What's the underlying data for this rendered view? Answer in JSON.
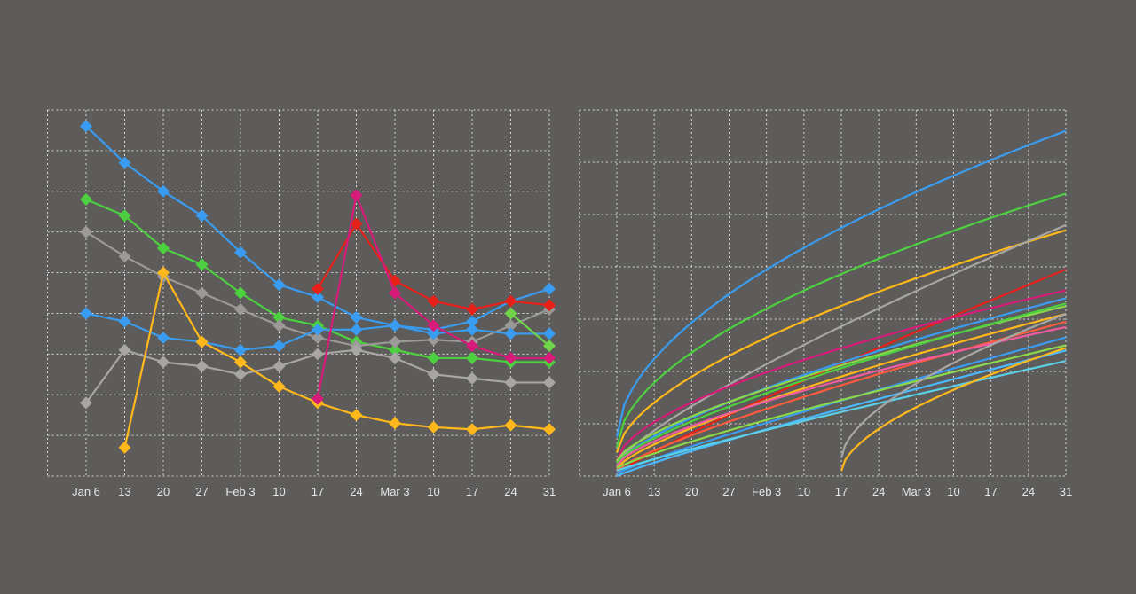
{
  "chart_data": [
    {
      "type": "line",
      "markers": "diamond",
      "grid": true,
      "x_ticks": [
        "Jan 6",
        "13",
        "20",
        "27",
        "Feb 3",
        "10",
        "17",
        "24",
        "Mar 3",
        "10",
        "17",
        "24",
        "31"
      ],
      "ylim": [
        0,
        9
      ],
      "series": [
        {
          "color": "#3a9cf0",
          "values": [
            8.6,
            7.7,
            7.0,
            6.4,
            5.5,
            4.7,
            4.4,
            3.9,
            3.7,
            3.6,
            3.8,
            4.3,
            4.6
          ]
        },
        {
          "color": "#4dd03f",
          "values": [
            6.8,
            6.4,
            5.6,
            5.2,
            4.5,
            3.9,
            3.7,
            3.3,
            3.1,
            2.9,
            2.9,
            2.8,
            2.8
          ]
        },
        {
          "color": "#9b9a98",
          "values": [
            6.0,
            5.4,
            4.9,
            4.5,
            4.1,
            3.7,
            3.4,
            3.2,
            3.3,
            3.35,
            3.3,
            3.7,
            4.1
          ]
        },
        {
          "color": "#3a9cf0",
          "values": [
            4.0,
            3.8,
            3.4,
            3.3,
            3.1,
            3.2,
            3.6,
            3.6,
            3.7,
            3.5,
            3.6,
            3.5,
            3.5
          ]
        },
        {
          "color": "#a7a6a4",
          "values": [
            1.8,
            3.1,
            2.8,
            2.7,
            2.5,
            2.7,
            3.0,
            3.1,
            2.9,
            2.5,
            2.4,
            2.3,
            2.3
          ]
        },
        {
          "color": "#ffb81c",
          "values": [
            null,
            0.7,
            5.0,
            3.3,
            2.8,
            2.2,
            1.8,
            1.5,
            1.3,
            1.2,
            1.15,
            1.25,
            1.15
          ]
        },
        {
          "color": "#e8201a",
          "values": [
            null,
            null,
            null,
            null,
            null,
            null,
            4.6,
            6.2,
            4.8,
            4.3,
            4.1,
            4.3,
            4.2
          ]
        },
        {
          "color": "#d81b7a",
          "values": [
            null,
            null,
            null,
            null,
            null,
            null,
            1.9,
            6.9,
            4.5,
            3.7,
            3.2,
            2.9,
            2.9
          ]
        },
        {
          "color": "#6fd44a",
          "values": [
            null,
            null,
            null,
            null,
            null,
            null,
            null,
            null,
            null,
            null,
            null,
            4.0,
            3.2
          ]
        }
      ]
    },
    {
      "type": "line",
      "grid": true,
      "x_ticks": [
        "Jan 6",
        "13",
        "20",
        "27",
        "Feb 3",
        "10",
        "17",
        "24",
        "Mar 3",
        "10",
        "17",
        "24",
        "31"
      ],
      "ylim": [
        0,
        7
      ],
      "series": [
        {
          "color": "#3a9cf0",
          "start": 0,
          "start_value": 0.75,
          "end_value": 6.6,
          "curve": 0.55
        },
        {
          "color": "#4dd03f",
          "start": 0,
          "start_value": 0.55,
          "end_value": 5.4,
          "curve": 0.55
        },
        {
          "color": "#ffb81c",
          "start": 0,
          "start_value": 0.45,
          "end_value": 4.7,
          "curve": 0.6
        },
        {
          "color": "#a7a6a4",
          "start": 0,
          "start_value": 0.25,
          "end_value": 4.8,
          "curve": 0.8
        },
        {
          "color": "#e8201a",
          "start": 0,
          "start_value": 0.05,
          "end_value": 3.95,
          "curve": 0.9
        },
        {
          "color": "#d81b7a",
          "start": 0,
          "start_value": 0.3,
          "end_value": 3.55,
          "curve": 0.6
        },
        {
          "color": "#3a9cf0",
          "start": 0,
          "start_value": 0.2,
          "end_value": 3.4,
          "curve": 0.7
        },
        {
          "color": "#8bd84a",
          "start": 0,
          "start_value": 0.3,
          "end_value": 3.25,
          "curve": 0.7
        },
        {
          "color": "#ffb81c",
          "start": 0,
          "start_value": 0.15,
          "end_value": 3.1,
          "curve": 0.75
        },
        {
          "color": "#4dd03f",
          "start": 0,
          "start_value": 0.25,
          "end_value": 3.3,
          "curve": 0.75
        },
        {
          "color": "#ff5a3c",
          "start": 0,
          "start_value": 0.1,
          "end_value": 2.95,
          "curve": 0.8
        },
        {
          "color": "#f05aa0",
          "start": 0,
          "start_value": 0.2,
          "end_value": 2.85,
          "curve": 0.7
        },
        {
          "color": "#3a9cf0",
          "start": 0,
          "start_value": 0.05,
          "end_value": 2.65,
          "curve": 0.9
        },
        {
          "color": "#8bd84a",
          "start": 0,
          "start_value": 0.15,
          "end_value": 2.5,
          "curve": 0.85
        },
        {
          "color": "#4ab8ff",
          "start": 0,
          "start_value": 0.0,
          "end_value": 2.4,
          "curve": 0.9
        },
        {
          "color": "#5ad0e8",
          "start": 0,
          "start_value": 0.1,
          "end_value": 2.2,
          "curve": 0.9
        },
        {
          "color": "#ffb81c",
          "start": 6,
          "start_value": 0.1,
          "end_value": 2.45,
          "curve": 0.6
        },
        {
          "color": "#a7a6a4",
          "start": 6,
          "start_value": 0.35,
          "end_value": 3.1,
          "curve": 0.6
        }
      ]
    }
  ]
}
